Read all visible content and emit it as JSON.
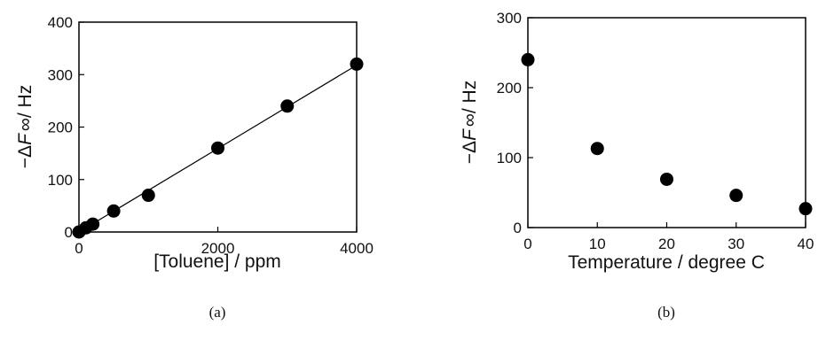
{
  "chart_data": [
    {
      "type": "scatter",
      "panel_label": "(a)",
      "xlabel": "[Toluene] / ppm",
      "ylabel": {
        "prefix": "−Δ",
        "var": "F",
        "sub": "∞",
        "suffix": "/ Hz"
      },
      "xlim": [
        0,
        4000
      ],
      "ylim": [
        0,
        400
      ],
      "xticks": [
        0,
        2000,
        4000
      ],
      "yticks": [
        0,
        100,
        200,
        300,
        400
      ],
      "series": [
        {
          "x": [
            0,
            100,
            200,
            500,
            1000,
            2000,
            3000,
            4000
          ],
          "y": [
            0,
            8,
            15,
            40,
            70,
            160,
            240,
            320
          ]
        }
      ],
      "fit_line": {
        "x": [
          0,
          4000
        ],
        "y": [
          0,
          318
        ]
      },
      "color": "#000000"
    },
    {
      "type": "scatter",
      "panel_label": "(b)",
      "xlabel": "Temperature / degree C",
      "ylabel": {
        "prefix": "−Δ",
        "var": "F",
        "sub": "∞",
        "suffix": "/ Hz"
      },
      "xlim": [
        0,
        40
      ],
      "ylim": [
        0,
        300
      ],
      "xticks": [
        0,
        10,
        20,
        30,
        40
      ],
      "yticks": [
        0,
        100,
        200,
        300
      ],
      "series": [
        {
          "x": [
            0,
            10,
            20,
            30,
            40
          ],
          "y": [
            240,
            113,
            69,
            46,
            27
          ]
        }
      ],
      "color": "#000000"
    }
  ]
}
